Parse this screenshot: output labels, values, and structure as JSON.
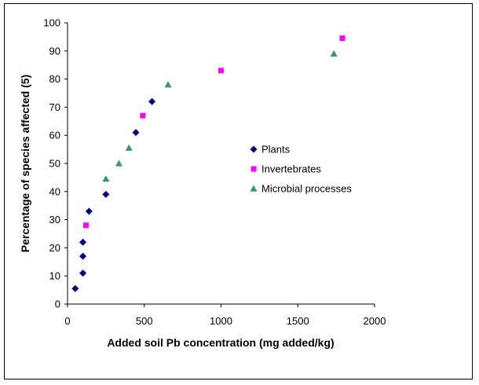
{
  "chart_data": {
    "type": "scatter",
    "xlabel": "Added soil Pb concentration (mg added/kg)",
    "ylabel": "Percentage of species affected (5)",
    "xlim": [
      0,
      2000
    ],
    "ylim": [
      0,
      100
    ],
    "x_ticks": [
      0,
      500,
      1000,
      1500,
      2000
    ],
    "y_ticks": [
      0,
      10,
      20,
      30,
      40,
      50,
      60,
      70,
      80,
      90,
      100
    ],
    "grid": false,
    "legend_position": "right-center",
    "series": [
      {
        "name": "Plants",
        "marker": "diamond",
        "color": "#000080",
        "points": [
          {
            "x": 50,
            "y": 5.5
          },
          {
            "x": 100,
            "y": 11
          },
          {
            "x": 100,
            "y": 17
          },
          {
            "x": 100,
            "y": 22
          },
          {
            "x": 140,
            "y": 33
          },
          {
            "x": 250,
            "y": 39
          },
          {
            "x": 445,
            "y": 61
          },
          {
            "x": 550,
            "y": 72
          }
        ]
      },
      {
        "name": "Invertebrates",
        "marker": "square",
        "color": "#FF00FF",
        "points": [
          {
            "x": 120,
            "y": 28
          },
          {
            "x": 490,
            "y": 67
          },
          {
            "x": 1000,
            "y": 83
          },
          {
            "x": 1790,
            "y": 94.5
          }
        ]
      },
      {
        "name": "Microbial processes",
        "marker": "triangle",
        "color": "#339966",
        "points": [
          {
            "x": 250,
            "y": 44.5
          },
          {
            "x": 335,
            "y": 50
          },
          {
            "x": 400,
            "y": 55.5
          },
          {
            "x": 655,
            "y": 78
          },
          {
            "x": 1735,
            "y": 89
          }
        ]
      }
    ]
  }
}
